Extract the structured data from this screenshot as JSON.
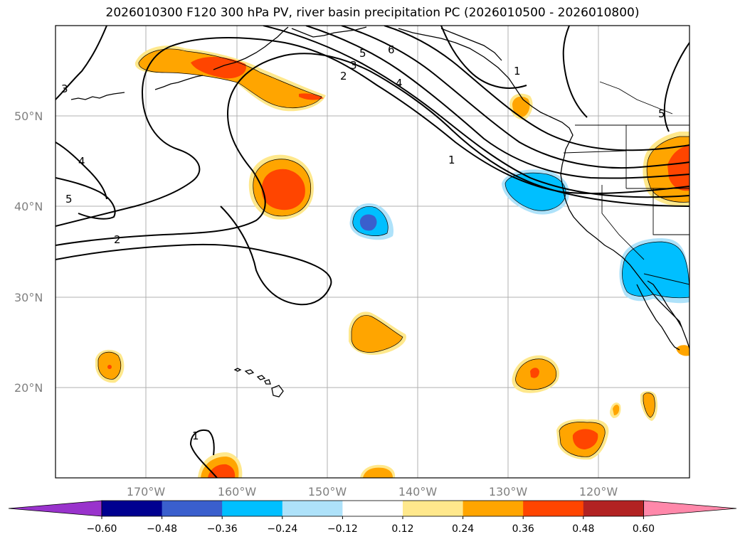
{
  "title": "2026010300 F120 300 hPa PV, river basin precipitation PC (2026010500 - 2026010800)",
  "lat_labels": [
    "50°N",
    "40°N",
    "30°N",
    "20°N"
  ],
  "lon_labels": [
    "170°W",
    "160°W",
    "150°W",
    "140°W",
    "130°W",
    "120°W"
  ],
  "contour_labels": [
    "1",
    "2",
    "3",
    "4",
    "5",
    "6",
    "1",
    "2",
    "3",
    "4",
    "5",
    "1",
    "5"
  ],
  "colorbar": {
    "ticks": [
      "−0.60",
      "−0.48",
      "−0.36",
      "−0.24",
      "−0.12",
      "0.12",
      "0.24",
      "0.36",
      "0.48",
      "0.60"
    ],
    "colors": [
      "#9933cc",
      "#000090",
      "#3a5fcd",
      "#00bfff",
      "#aee2fa",
      "#ffffff",
      "#ffe88c",
      "#ffa500",
      "#ff4500",
      "#b22222",
      "#ff88aa"
    ]
  },
  "colors": {
    "pos_low": "#ffe88c",
    "pos_mid": "#ffa500",
    "pos_high": "#ff4500",
    "neg_low": "#aee2fa",
    "neg_mid": "#00bfff",
    "neg_high": "#3a5fcd",
    "gridline": "#b0b0b0"
  }
}
